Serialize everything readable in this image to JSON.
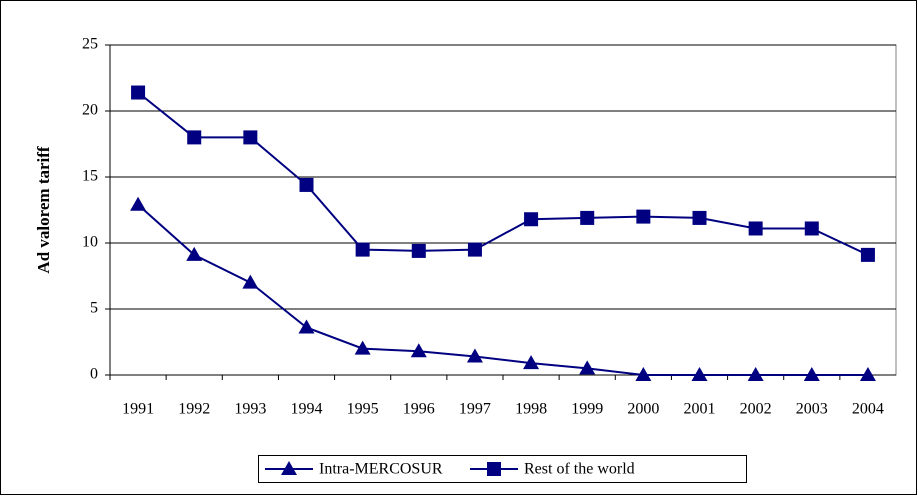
{
  "chart_data": {
    "type": "line",
    "y_label": "Ad valorem tariff",
    "categories": [
      "1991",
      "1992",
      "1993",
      "1994",
      "1995",
      "1996",
      "1997",
      "1998",
      "1999",
      "2000",
      "2001",
      "2002",
      "2003",
      "2004"
    ],
    "series": [
      {
        "name": "Intra-MERCOSUR",
        "color": "#000080",
        "marker": "triangle",
        "values": [
          12.9,
          9.1,
          7.0,
          3.6,
          2.0,
          1.8,
          1.4,
          0.9,
          0.5,
          0,
          0,
          0,
          0,
          0
        ]
      },
      {
        "name": "Rest of the world",
        "color": "#000080",
        "marker": "square",
        "values": [
          21.4,
          18.0,
          18.0,
          14.4,
          9.5,
          9.4,
          9.5,
          11.8,
          11.9,
          12.0,
          11.9,
          11.1,
          11.1,
          9.1
        ]
      }
    ],
    "ylim": [
      0,
      25
    ],
    "yticks": [
      0,
      5,
      10,
      15,
      20,
      25
    ],
    "grid": true,
    "legend": "bottom"
  }
}
